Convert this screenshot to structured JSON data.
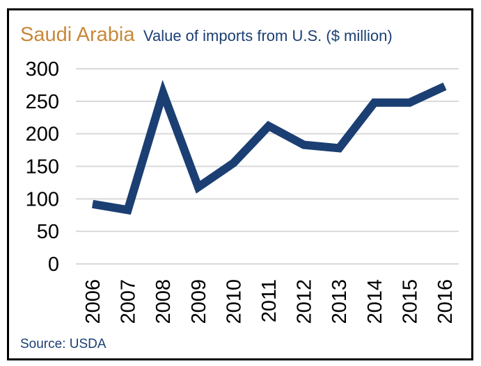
{
  "colors": {
    "country": "#C8883A",
    "navy": "#1B3F73",
    "grid": "#D9D9D9",
    "text": "#000000"
  },
  "chart_data": {
    "type": "line",
    "title": "Saudi Arabia",
    "subtitle": "Value of imports from U.S. ($ million)",
    "categories": [
      "2006",
      "2007",
      "2008",
      "2009",
      "2010",
      "2011",
      "2012",
      "2013",
      "2014",
      "2015",
      "2016"
    ],
    "series": [
      {
        "values": [
          92,
          83,
          263,
          118,
          155,
          212,
          183,
          178,
          248,
          248,
          273
        ]
      }
    ],
    "ylim": [
      0,
      300
    ],
    "yticks": [
      0,
      50,
      100,
      150,
      200,
      250,
      300
    ],
    "grid": true,
    "legend": "none",
    "source": "Source: USDA"
  }
}
